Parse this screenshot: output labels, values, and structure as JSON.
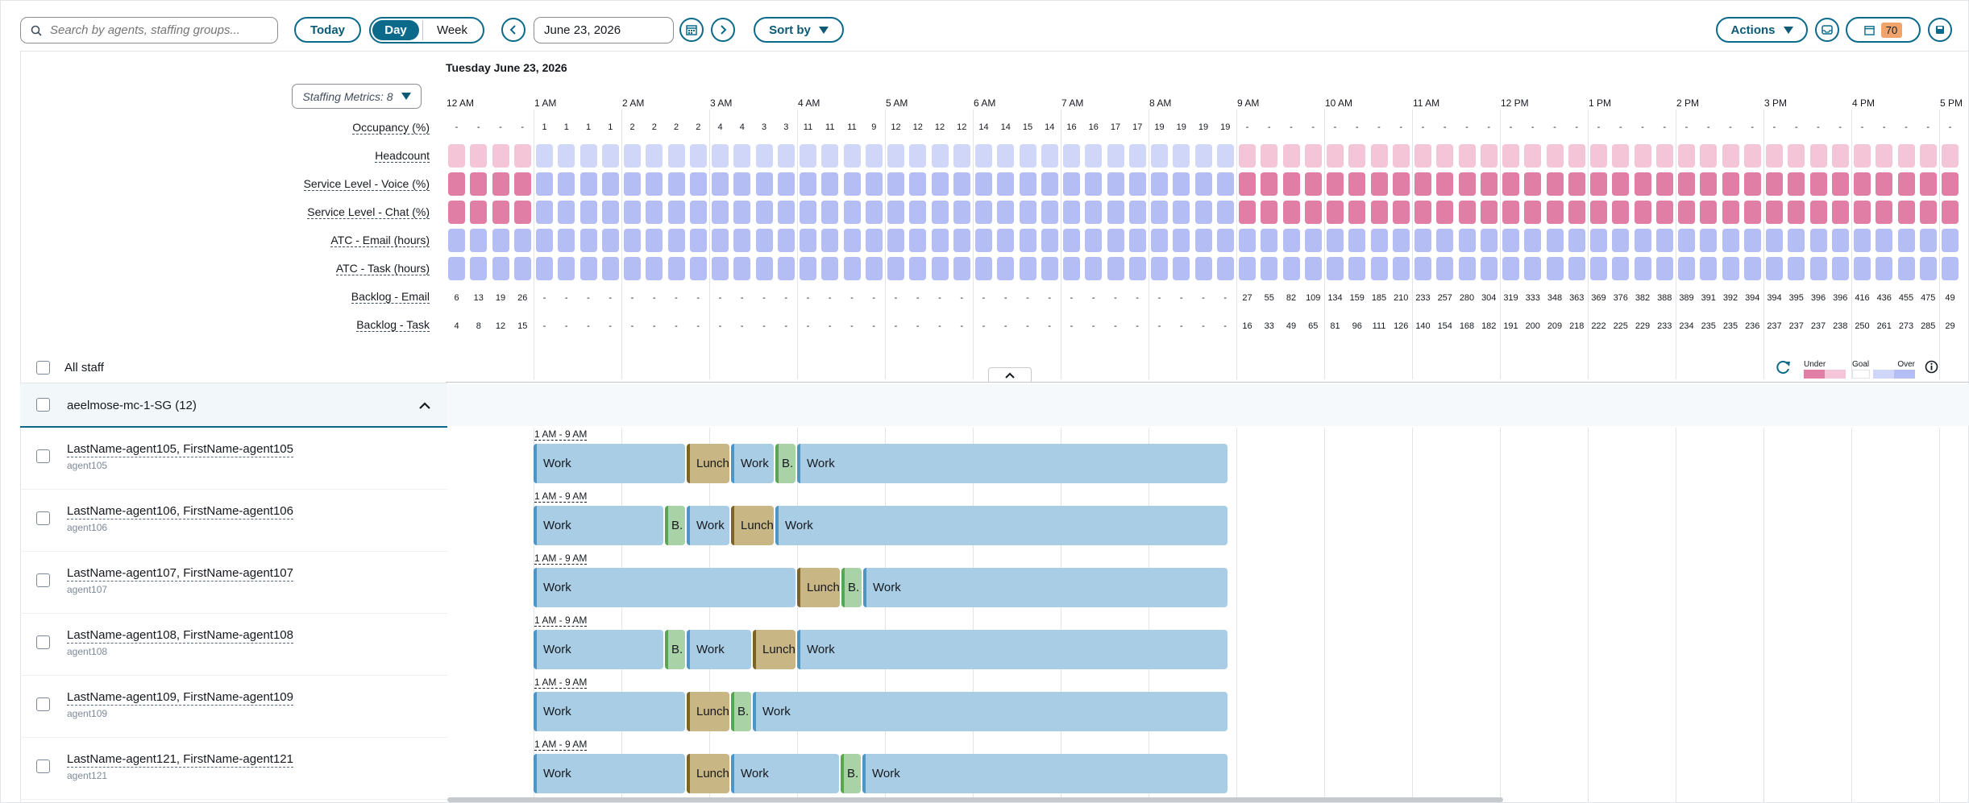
{
  "toolbar": {
    "search_placeholder": "Search by agents, staffing groups...",
    "today_label": "Today",
    "day_label": "Day",
    "week_label": "Week",
    "date_value": "June 23, 2026",
    "sort_label": "Sort by",
    "actions_label": "Actions",
    "notification_count": "70"
  },
  "schedule": {
    "date_heading": "Tuesday June 23, 2026",
    "staffing_metrics_label": "Staffing Metrics: 8",
    "hours": [
      "12 AM",
      "1 AM",
      "2 AM",
      "3 AM",
      "4 AM",
      "5 AM",
      "6 AM",
      "7 AM",
      "8 AM",
      "9 AM",
      "10 AM",
      "11 AM",
      "12 PM",
      "1 PM",
      "2 PM",
      "3 PM",
      "4 PM",
      "5 PM"
    ],
    "metrics": [
      "Occupancy (%)",
      "Headcount",
      "Service Level - Voice (%)",
      "Service Level - Chat (%)",
      "ATC - Email (hours)",
      "ATC - Task (hours)",
      "Backlog - Email",
      "Backlog - Task"
    ],
    "occupancy": [
      "-",
      "-",
      "-",
      "-",
      "1",
      "1",
      "1",
      "1",
      "2",
      "2",
      "2",
      "2",
      "4",
      "4",
      "3",
      "3",
      "11",
      "11",
      "11",
      "9",
      "12",
      "12",
      "12",
      "12",
      "14",
      "14",
      "15",
      "14",
      "16",
      "16",
      "17",
      "17",
      "19",
      "19",
      "19",
      "19",
      "-",
      "-",
      "-",
      "-",
      "-",
      "-",
      "-",
      "-",
      "-",
      "-",
      "-",
      "-",
      "-",
      "-",
      "-",
      "-",
      "-",
      "-",
      "-",
      "-",
      "-",
      "-",
      "-",
      "-",
      "-",
      "-",
      "-",
      "-",
      "-",
      "-",
      "-",
      "-",
      "-",
      "-",
      "-"
    ],
    "backlog_email": [
      "6",
      "13",
      "19",
      "26",
      "-",
      "-",
      "-",
      "-",
      "-",
      "-",
      "-",
      "-",
      "-",
      "-",
      "-",
      "-",
      "-",
      "-",
      "-",
      "-",
      "-",
      "-",
      "-",
      "-",
      "-",
      "-",
      "-",
      "-",
      "-",
      "-",
      "-",
      "-",
      "-",
      "-",
      "-",
      "-",
      "27",
      "55",
      "82",
      "109",
      "134",
      "159",
      "185",
      "210",
      "233",
      "257",
      "280",
      "304",
      "319",
      "333",
      "348",
      "363",
      "369",
      "376",
      "382",
      "388",
      "389",
      "391",
      "392",
      "394",
      "394",
      "395",
      "396",
      "396",
      "416",
      "436",
      "455",
      "475",
      "49"
    ],
    "backlog_task": [
      "4",
      "8",
      "12",
      "15",
      "-",
      "-",
      "-",
      "-",
      "-",
      "-",
      "-",
      "-",
      "-",
      "-",
      "-",
      "-",
      "-",
      "-",
      "-",
      "-",
      "-",
      "-",
      "-",
      "-",
      "-",
      "-",
      "-",
      "-",
      "-",
      "-",
      "-",
      "-",
      "-",
      "-",
      "-",
      "-",
      "16",
      "33",
      "49",
      "65",
      "81",
      "96",
      "111",
      "126",
      "140",
      "154",
      "168",
      "182",
      "191",
      "200",
      "209",
      "218",
      "222",
      "225",
      "229",
      "233",
      "234",
      "235",
      "235",
      "236",
      "237",
      "237",
      "237",
      "238",
      "250",
      "261",
      "273",
      "285",
      "29"
    ],
    "all_staff_label": "All staff",
    "legend": {
      "under": "Under",
      "goal": "Goal",
      "over": "Over"
    },
    "colors": {
      "under_dark": "#e07ea6",
      "under_light": "#f4c5d6",
      "over_light": "#cfd6f7",
      "over": "#b4bdf4",
      "work": "#a9cde4",
      "lunch": "#c9b685",
      "break": "#a9d3a6",
      "accent": "#0b6a8a"
    }
  },
  "group": {
    "name": "aeelmose-mc-1-SG (12)"
  },
  "agents": [
    {
      "name": "LastName-agent105, FirstName-agent105",
      "id": "agent105",
      "shift": "1 AM - 9 AM",
      "segments": [
        [
          "work",
          "Work"
        ],
        [
          "lunch",
          "Lunch"
        ],
        [
          "work",
          "Work"
        ],
        [
          "brk",
          "B."
        ],
        [
          "work",
          "Work"
        ]
      ]
    },
    {
      "name": "LastName-agent106, FirstName-agent106",
      "id": "agent106",
      "shift": "1 AM - 9 AM",
      "segments": [
        [
          "work",
          "Work"
        ],
        [
          "brk",
          "B."
        ],
        [
          "work",
          "Work"
        ],
        [
          "lunch",
          "Lunch"
        ],
        [
          "work",
          "Work"
        ]
      ]
    },
    {
      "name": "LastName-agent107, FirstName-agent107",
      "id": "agent107",
      "shift": "1 AM - 9 AM",
      "segments": [
        [
          "work",
          "Work"
        ],
        [
          "lunch",
          "Lunch"
        ],
        [
          "brk",
          "B."
        ],
        [
          "work",
          "Work"
        ]
      ]
    },
    {
      "name": "LastName-agent108, FirstName-agent108",
      "id": "agent108",
      "shift": "1 AM - 9 AM",
      "segments": [
        [
          "work",
          "Work"
        ],
        [
          "brk",
          "B."
        ],
        [
          "work",
          "Work"
        ],
        [
          "lunch",
          "Lunch"
        ],
        [
          "work",
          "Work"
        ]
      ]
    },
    {
      "name": "LastName-agent109, FirstName-agent109",
      "id": "agent109",
      "shift": "1 AM - 9 AM",
      "segments": [
        [
          "work",
          "Work"
        ],
        [
          "lunch",
          "Lunch"
        ],
        [
          "brk",
          "B."
        ],
        [
          "work",
          "Work"
        ]
      ]
    },
    {
      "name": "LastName-agent121, FirstName-agent121",
      "id": "agent121",
      "shift": "1 AM - 9 AM",
      "segments": [
        [
          "work",
          "Work"
        ],
        [
          "lunch",
          "Lunch"
        ],
        [
          "work",
          "Work"
        ],
        [
          "brk",
          "B."
        ],
        [
          "work",
          "Work"
        ]
      ]
    }
  ]
}
